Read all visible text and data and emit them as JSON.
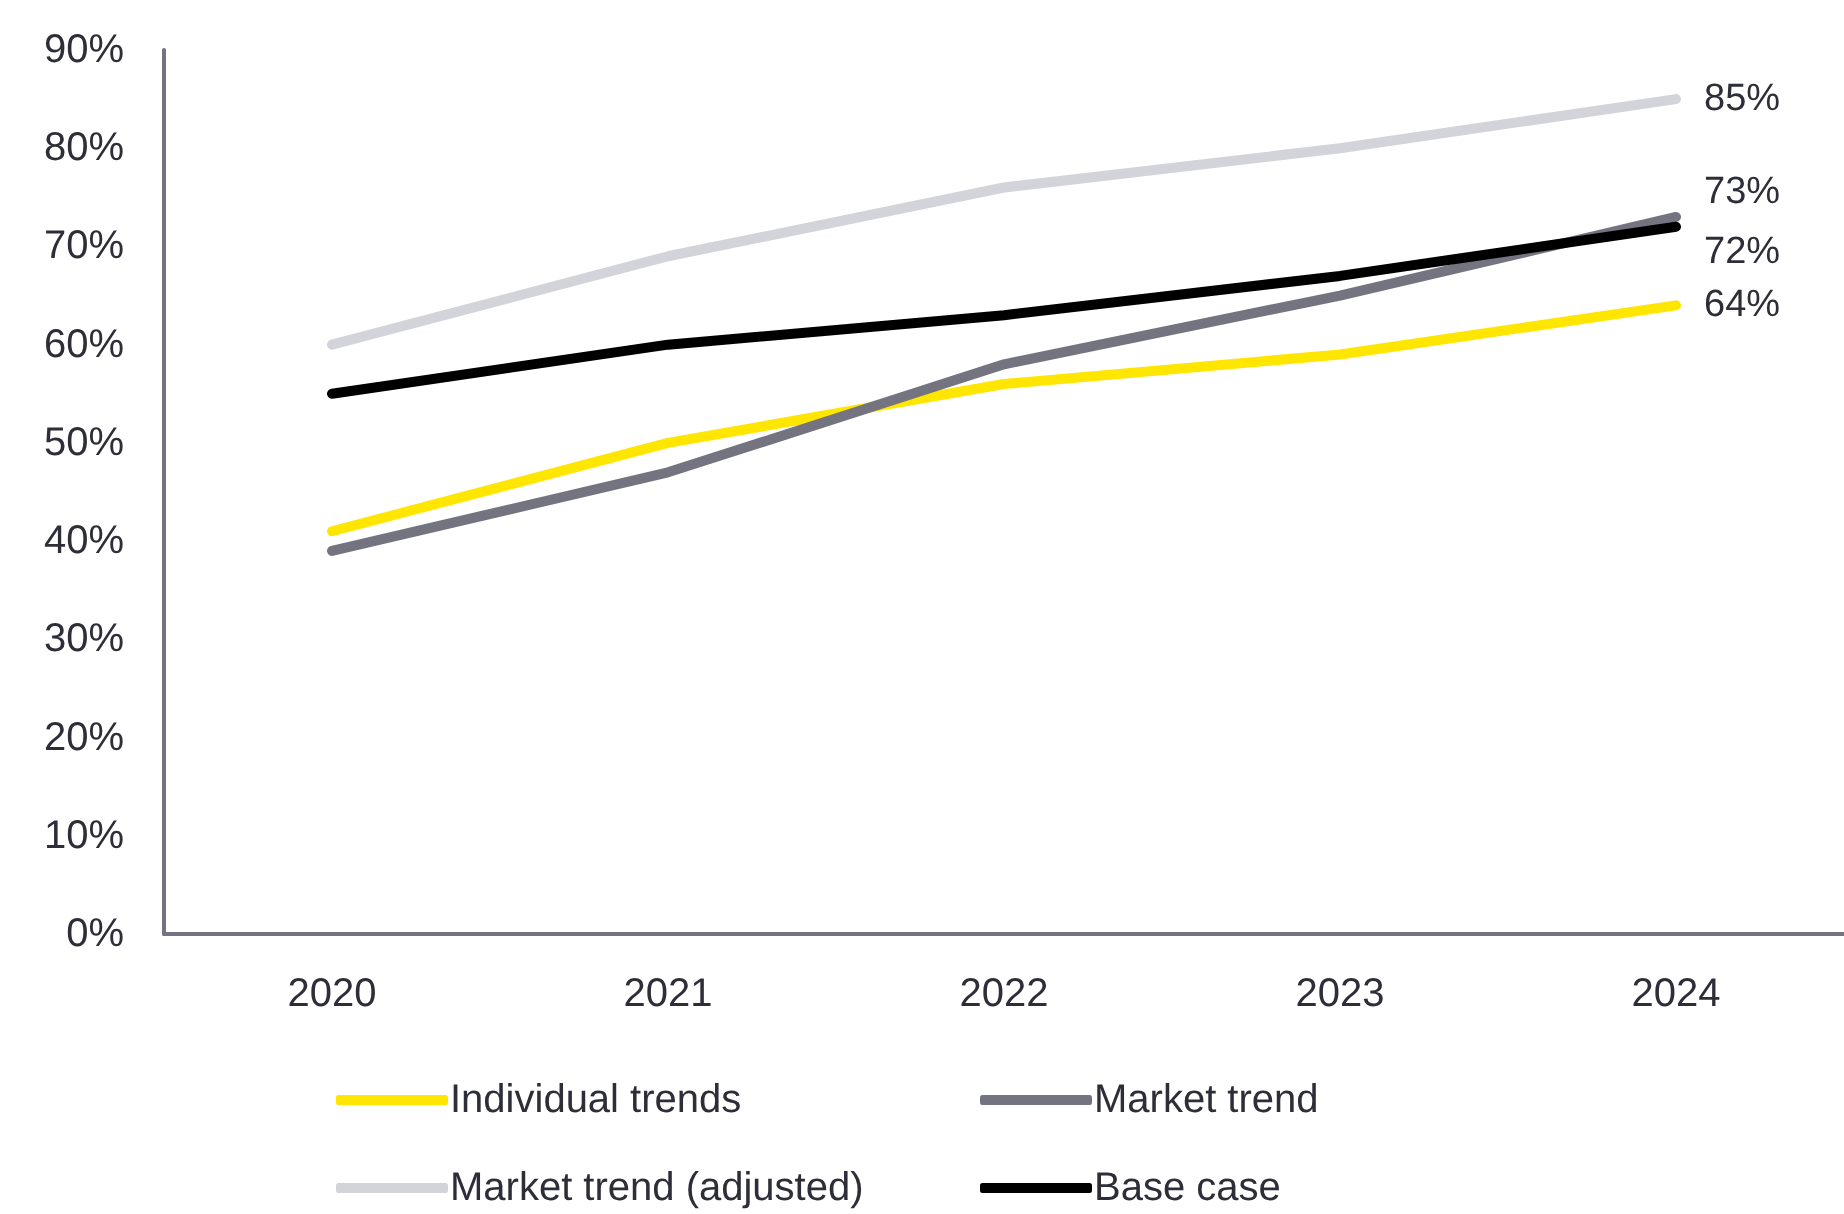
{
  "chart_data": {
    "type": "line",
    "categories": [
      "2020",
      "2021",
      "2022",
      "2023",
      "2024"
    ],
    "ylim": [
      0,
      90
    ],
    "yticks": [
      {
        "value": 0,
        "label": "0%"
      },
      {
        "value": 10,
        "label": "10%"
      },
      {
        "value": 20,
        "label": "20%"
      },
      {
        "value": 30,
        "label": "30%"
      },
      {
        "value": 40,
        "label": "40%"
      },
      {
        "value": 50,
        "label": "50%"
      },
      {
        "value": 60,
        "label": "60%"
      },
      {
        "value": 70,
        "label": "70%"
      },
      {
        "value": 80,
        "label": "80%"
      },
      {
        "value": 90,
        "label": "90%"
      }
    ],
    "legend": "bottom",
    "marker": "none",
    "line_style": "solid",
    "series": [
      {
        "name": "Individual trends",
        "color": "#ffe600",
        "values": [
          41,
          50,
          56,
          59,
          64
        ],
        "value_labels": [
          null,
          null,
          null,
          null,
          "64%"
        ]
      },
      {
        "name": "Market trend",
        "color": "#747480",
        "values": [
          39,
          47,
          58,
          65,
          73
        ],
        "value_labels": [
          null,
          null,
          null,
          null,
          "73%"
        ]
      },
      {
        "name": "Market trend (adjusted)",
        "color": "#d3d3da",
        "values": [
          60,
          69,
          76,
          80,
          85
        ],
        "value_labels": [
          null,
          null,
          null,
          null,
          "85%"
        ]
      },
      {
        "name": "Base case",
        "color": "#000000",
        "values": [
          55,
          60,
          63,
          67,
          72
        ],
        "value_labels": [
          null,
          null,
          null,
          null,
          "72%"
        ]
      }
    ]
  }
}
